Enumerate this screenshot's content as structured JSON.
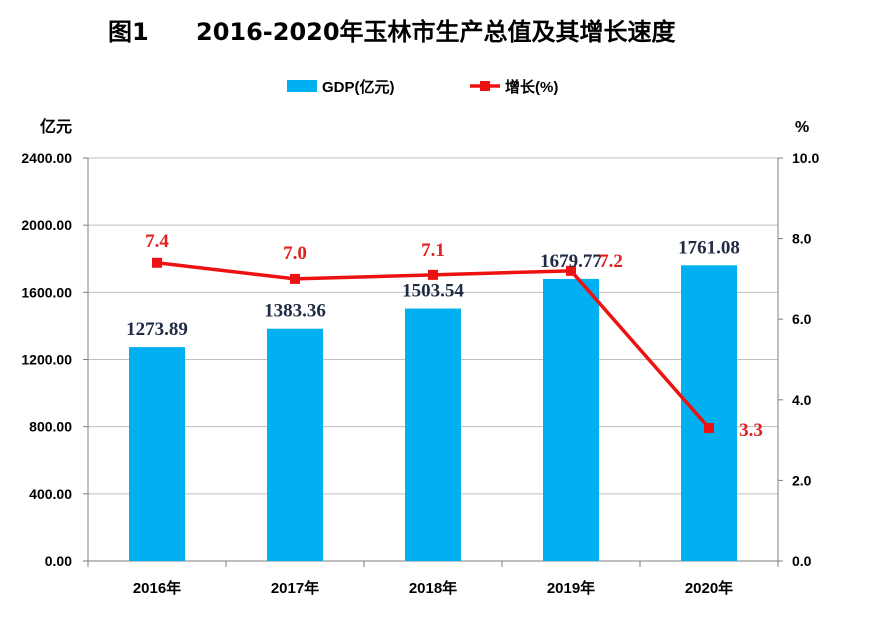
{
  "figure": {
    "number": "图1",
    "title": "2016-2020年玉林市生产总值及其增长速度"
  },
  "chart_data": {
    "type": "bar",
    "categories": [
      "2016年",
      "2017年",
      "2018年",
      "2019年",
      "2020年"
    ],
    "series": [
      {
        "name": "GDP(亿元)",
        "type": "bar",
        "axis": "left",
        "color": "#00b0f0",
        "values": [
          1273.89,
          1383.36,
          1503.54,
          1679.77,
          1761.08
        ],
        "labels": [
          "1273.89",
          "1383.36",
          "1503.54",
          "1679.77",
          "1761.08"
        ]
      },
      {
        "name": "增长(%)",
        "type": "line",
        "axis": "right",
        "color": "#ee1111",
        "values": [
          7.4,
          7.0,
          7.1,
          7.2,
          3.3
        ],
        "labels": [
          "7.4",
          "7.0",
          "7.1",
          "7.2",
          "3.3"
        ]
      }
    ],
    "y_left": {
      "unit": "亿元",
      "range": [
        0,
        2400
      ],
      "ticks": [
        "0.00",
        "400.00",
        "800.00",
        "1200.00",
        "1600.00",
        "2000.00",
        "2400.00"
      ]
    },
    "y_right": {
      "unit": "%",
      "range": [
        0,
        10
      ],
      "ticks": [
        "0.0",
        "2.0",
        "4.0",
        "6.0",
        "8.0",
        "10.0"
      ]
    },
    "grid": true,
    "legend": "top-center"
  }
}
